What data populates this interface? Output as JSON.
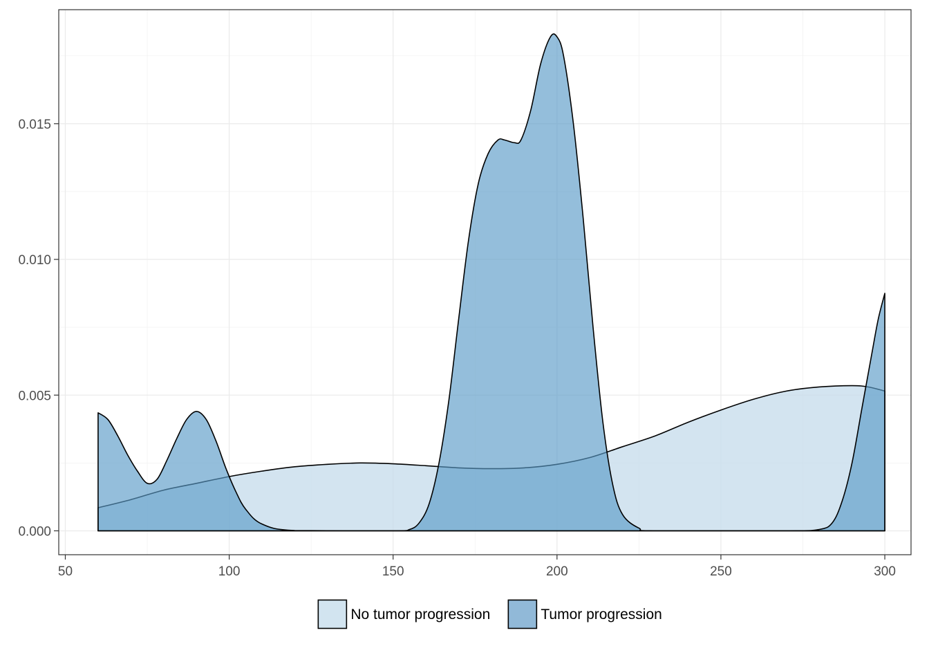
{
  "chart_data": {
    "type": "area",
    "title": "",
    "xlabel": "",
    "ylabel": "",
    "xlim": [
      48,
      308
    ],
    "ylim": [
      -0.00088,
      0.0192
    ],
    "x_ticks": [
      50,
      100,
      150,
      200,
      250,
      300
    ],
    "x_tick_labels": [
      "50",
      "100",
      "150",
      "200",
      "250",
      "300"
    ],
    "y_ticks": [
      0,
      0.005,
      0.01,
      0.015
    ],
    "y_tick_labels": [
      "0.000",
      "0.005",
      "0.010",
      "0.015"
    ],
    "grid": true,
    "legend_position": "bottom",
    "series": [
      {
        "name": "No tumor progression",
        "fill": "#c6dcec",
        "opacity": 0.78,
        "points": [
          [
            60,
            0.00085
          ],
          [
            70,
            0.00115
          ],
          [
            80,
            0.0015
          ],
          [
            90,
            0.00175
          ],
          [
            100,
            0.002
          ],
          [
            110,
            0.0022
          ],
          [
            120,
            0.00236
          ],
          [
            130,
            0.00245
          ],
          [
            140,
            0.0025
          ],
          [
            150,
            0.00247
          ],
          [
            160,
            0.0024
          ],
          [
            170,
            0.00232
          ],
          [
            180,
            0.00229
          ],
          [
            190,
            0.00232
          ],
          [
            200,
            0.00245
          ],
          [
            210,
            0.0027
          ],
          [
            220,
            0.0031
          ],
          [
            230,
            0.0035
          ],
          [
            240,
            0.004
          ],
          [
            250,
            0.00445
          ],
          [
            260,
            0.00485
          ],
          [
            270,
            0.00515
          ],
          [
            280,
            0.0053
          ],
          [
            290,
            0.00535
          ],
          [
            295,
            0.0053
          ],
          [
            300,
            0.00515
          ]
        ]
      },
      {
        "name": "Tumor progression",
        "fill": "#5b9bc8",
        "opacity": 0.65,
        "points": [
          [
            60,
            0.00435
          ],
          [
            63,
            0.0041
          ],
          [
            66,
            0.0035
          ],
          [
            69,
            0.0028
          ],
          [
            72,
            0.0022
          ],
          [
            75,
            0.00175
          ],
          [
            78,
            0.0019
          ],
          [
            81,
            0.0026
          ],
          [
            84,
            0.0034
          ],
          [
            87,
            0.0041
          ],
          [
            90,
            0.0044
          ],
          [
            93,
            0.0041
          ],
          [
            96,
            0.0033
          ],
          [
            99,
            0.0023
          ],
          [
            102,
            0.00145
          ],
          [
            105,
            0.0008
          ],
          [
            110,
            0.00025
          ],
          [
            120,
            1e-05
          ],
          [
            150,
            0.0
          ],
          [
            155,
            5e-05
          ],
          [
            158,
            0.0003
          ],
          [
            161,
            0.001
          ],
          [
            164,
            0.0025
          ],
          [
            167,
            0.0048
          ],
          [
            170,
            0.0078
          ],
          [
            173,
            0.0107
          ],
          [
            176,
            0.0128
          ],
          [
            179,
            0.0139
          ],
          [
            182,
            0.0144
          ],
          [
            184,
            0.0144
          ],
          [
            187,
            0.0143
          ],
          [
            189,
            0.0144
          ],
          [
            192,
            0.0155
          ],
          [
            195,
            0.0172
          ],
          [
            198,
            0.0182
          ],
          [
            200,
            0.0182
          ],
          [
            202,
            0.0175
          ],
          [
            205,
            0.015
          ],
          [
            208,
            0.0115
          ],
          [
            211,
            0.0075
          ],
          [
            214,
            0.004
          ],
          [
            217,
            0.0017
          ],
          [
            220,
            0.0006
          ],
          [
            225,
            0.0001
          ],
          [
            230,
            0.0
          ],
          [
            270,
            0.0
          ],
          [
            280,
            5e-05
          ],
          [
            284,
            0.0003
          ],
          [
            287,
            0.0011
          ],
          [
            290,
            0.0025
          ],
          [
            293,
            0.0045
          ],
          [
            296,
            0.0065
          ],
          [
            298,
            0.0078
          ],
          [
            300,
            0.00875
          ]
        ]
      }
    ]
  },
  "legend": {
    "items": [
      {
        "label": "No tumor progression",
        "color": "#d2e4f0"
      },
      {
        "label": "Tumor progression",
        "color": "#91b9d8"
      }
    ]
  }
}
